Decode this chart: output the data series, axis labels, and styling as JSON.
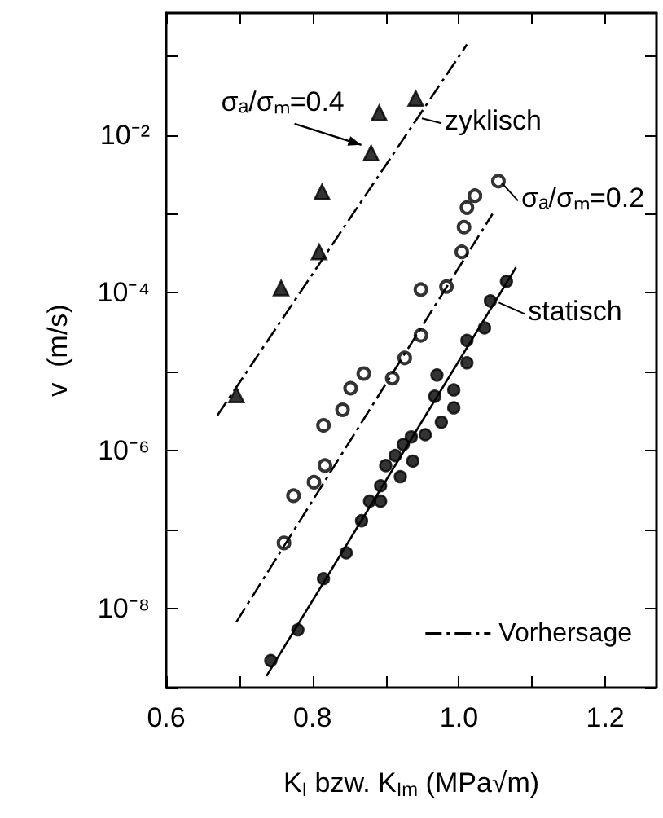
{
  "chart_data": {
    "type": "scatter",
    "xlabel": "K$_{I}$ bzw. K$_{Im}$ (MPa√m)",
    "ylabel": "v  (m/s)",
    "log": "y",
    "xlim": [
      0.6,
      1.27
    ],
    "xticks": [
      {
        "value": 0.6,
        "label": "0.6"
      },
      {
        "value": 0.7,
        "label": null
      },
      {
        "value": 0.8,
        "label": "0.8"
      },
      {
        "value": 0.9,
        "label": null
      },
      {
        "value": 1.0,
        "label": "1.0"
      },
      {
        "value": 1.1,
        "label": null
      },
      {
        "value": 1.2,
        "label": "1.2"
      }
    ],
    "ylim": [
      1e-09,
      0.35
    ],
    "yticks": [
      {
        "value": 1e-09,
        "label": null
      },
      {
        "value": 1e-08,
        "label": "10⁻⁸"
      },
      {
        "value": 1e-07,
        "label": null
      },
      {
        "value": 1e-06,
        "label": "10⁻⁶"
      },
      {
        "value": 1e-05,
        "label": null
      },
      {
        "value": 0.0001,
        "label": "10⁻⁴"
      },
      {
        "value": 0.001,
        "label": null
      },
      {
        "value": 0.01,
        "label": "10⁻²"
      },
      {
        "value": 0.1,
        "label": null
      }
    ],
    "grid": false,
    "legend": "bottom right",
    "series": [
      {
        "type": "scatter",
        "marker": "triangle",
        "color": "#000000",
        "x": [
          0.696,
          0.757,
          0.809,
          0.813,
          0.88,
          0.891,
          0.941
        ],
        "values": [
          5.1e-06,
          0.000115,
          0.00033,
          0.0019,
          0.0059,
          0.019,
          0.029
        ]
      },
      {
        "type": "scatter",
        "marker": "circle-open",
        "color": "#000000",
        "x": [
          0.761,
          0.774,
          0.802,
          0.817,
          0.815,
          0.841,
          0.852,
          0.87,
          0.909,
          0.926,
          0.948,
          0.948,
          0.983,
          1.004,
          1.007,
          1.011,
          1.022,
          1.054
        ],
        "values": [
          6.8e-08,
          2.7e-07,
          4e-07,
          6.5e-07,
          2.1e-06,
          3.3e-06,
          6.2e-06,
          9.5e-06,
          8.3e-06,
          1.5e-05,
          2.9e-05,
          0.00011,
          0.00012,
          0.00033,
          0.00068,
          0.0012,
          0.0017,
          0.0026
        ]
      },
      {
        "type": "scatter",
        "marker": "circle",
        "color": "#000000",
        "x": [
          0.743,
          0.78,
          0.815,
          0.846,
          0.867,
          0.878,
          0.893,
          0.893,
          0.9,
          0.913,
          0.92,
          0.924,
          0.935,
          0.937,
          0.954,
          0.967,
          0.976,
          0.993,
          0.993,
          0.97,
          1.011,
          1.011,
          1.035,
          1.043,
          1.065
        ],
        "values": [
          2.2e-09,
          5.4e-09,
          2.4e-08,
          5.1e-08,
          1.3e-07,
          2.3e-07,
          2.3e-07,
          3.6e-07,
          6.5e-07,
          8.7e-07,
          4.7e-07,
          1.2e-06,
          1.5e-06,
          7.4e-07,
          1.6e-06,
          4.9e-06,
          2.3e-06,
          5.9e-06,
          3.5e-06,
          9.1e-06,
          1.3e-05,
          2.5e-05,
          3.6e-05,
          7.9e-05,
          0.00014
        ]
      },
      {
        "type": "line",
        "name": "Vorhersage",
        "marker": "none",
        "line_style": "dashed",
        "color": "#000000",
        "x": [
          0.67,
          1.011
        ],
        "values": [
          2.8e-06,
          0.14
        ]
      },
      {
        "type": "line",
        "marker": "none",
        "line_style": "dashed",
        "color": "#000000",
        "x": [
          0.696,
          1.046
        ],
        "values": [
          6.8e-09,
          0.001
        ]
      },
      {
        "type": "line",
        "marker": "none",
        "line_style": "solid",
        "color": "#000000",
        "x": [
          0.737,
          1.078
        ],
        "values": [
          1.4e-09,
          0.00021
        ]
      }
    ],
    "annotations": [
      {
        "text": "σₐ/σₘ=0.4",
        "x": 0.88,
        "y": 0.0059
      },
      {
        "text": "zyklisch",
        "x": 0.945,
        "y": 0.017
      },
      {
        "text": "σₐ/σₘ=0.2",
        "x": 1.054,
        "y": 0.0026
      },
      {
        "text": "statisch",
        "x": 1.05,
        "y": 7.9e-05
      }
    ]
  }
}
